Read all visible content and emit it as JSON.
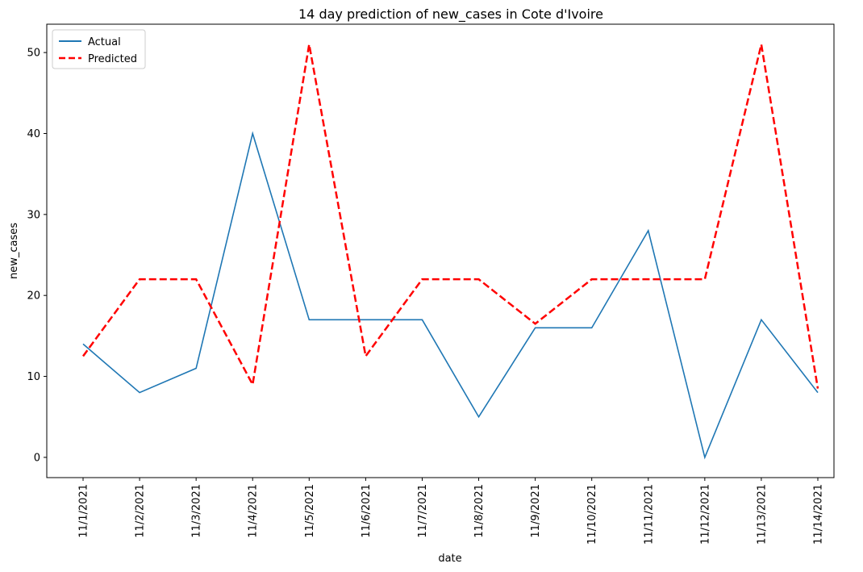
{
  "chart_data": {
    "type": "line",
    "title": "14 day prediction of new_cases in Cote d'Ivoire",
    "xlabel": "date",
    "ylabel": "new_cases",
    "categories": [
      "11/1/2021",
      "11/2/2021",
      "11/3/2021",
      "11/4/2021",
      "11/5/2021",
      "11/6/2021",
      "11/7/2021",
      "11/8/2021",
      "11/9/2021",
      "11/10/2021",
      "11/11/2021",
      "11/12/2021",
      "11/13/2021",
      "11/14/2021"
    ],
    "ylim": [
      -2.5,
      53.5
    ],
    "yticks": [
      0,
      10,
      20,
      30,
      40,
      50
    ],
    "grid": false,
    "legend_position": "upper-left",
    "series": [
      {
        "name": "Actual",
        "color": "#1f77b4",
        "style": "solid",
        "values": [
          14,
          8,
          11,
          40,
          17,
          17,
          17,
          5,
          16,
          16,
          28,
          0,
          17,
          8
        ]
      },
      {
        "name": "Predicted",
        "color": "#ff0000",
        "style": "dashed",
        "values": [
          12.5,
          22,
          22,
          9,
          51,
          12.5,
          22,
          22,
          16.5,
          22,
          22,
          22,
          51,
          8.5
        ]
      }
    ]
  }
}
